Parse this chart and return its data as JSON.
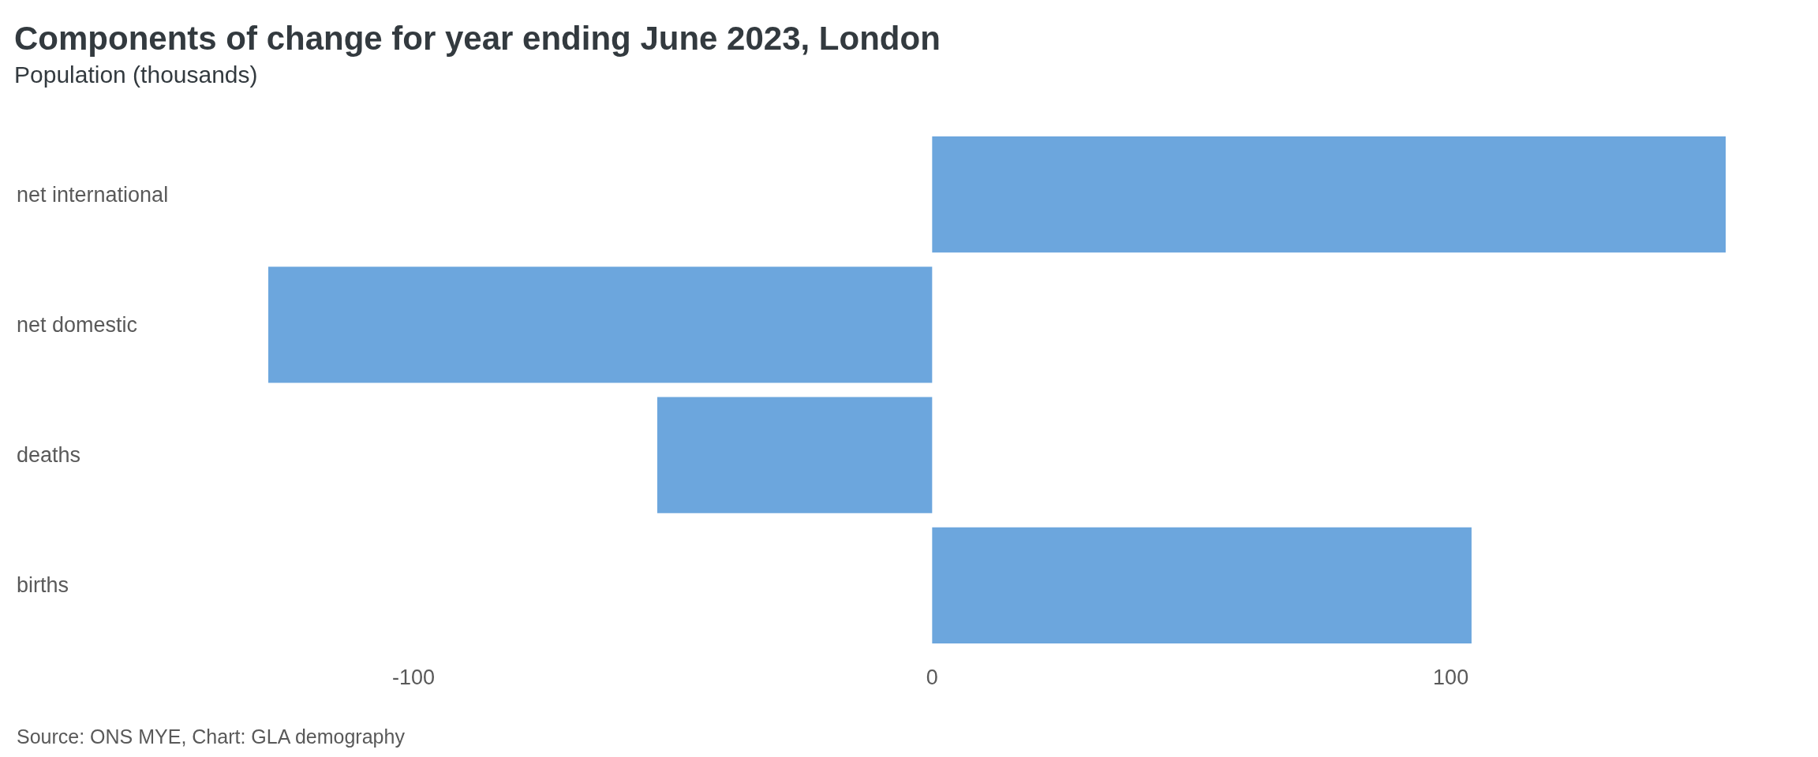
{
  "chart_data": {
    "type": "bar",
    "orientation": "horizontal",
    "title": "Components of change for year ending June 2023, London",
    "subtitle": "Population (thousands)",
    "categories": [
      "net international",
      "net domestic",
      "deaths",
      "births"
    ],
    "values": [
      153,
      -128,
      -53,
      104
    ],
    "color": "#6ca6dd",
    "xlim": [
      -128,
      153
    ],
    "xticks": [
      -100,
      0,
      100
    ],
    "grid": false,
    "annotations": [
      "Source: ONS MYE, Chart: GLA demography"
    ]
  }
}
